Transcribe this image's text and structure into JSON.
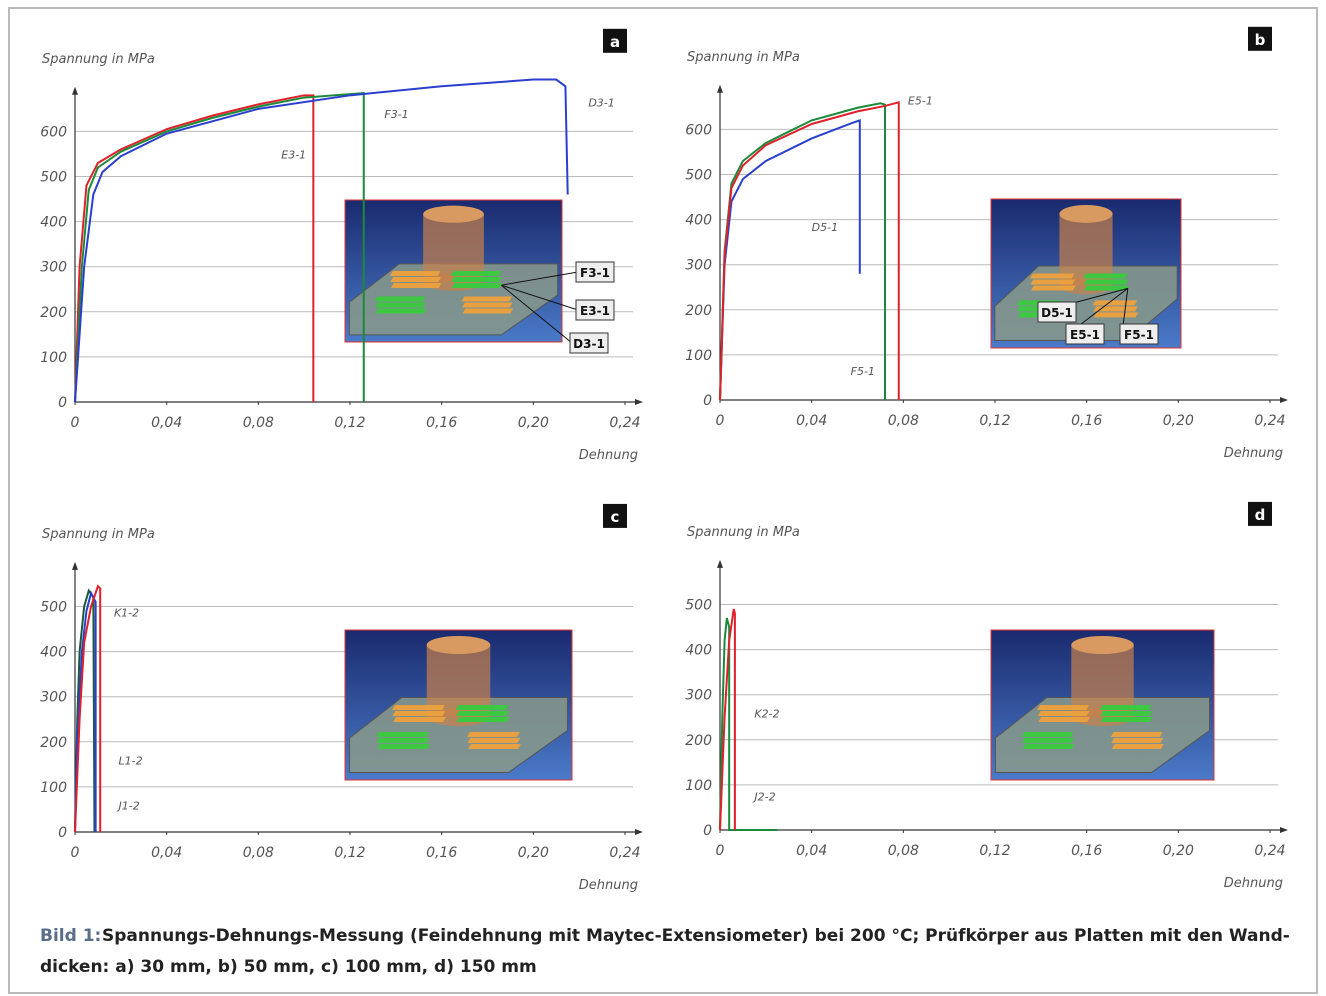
{
  "chart_data": [
    {
      "type": "line",
      "panel": "a",
      "y_label": "Spannung in MPa",
      "x_label": "Dehnung",
      "xlim": [
        0,
        0.24
      ],
      "ylim": [
        0,
        690
      ],
      "grid": true,
      "xticks": [
        0,
        {
          "value": 0.04,
          "label": "0,04"
        },
        {
          "value": 0.08,
          "label": "0,08"
        },
        {
          "value": 0.12,
          "label": "0,12"
        },
        {
          "value": 0.16,
          "label": "0,16"
        },
        {
          "value": 0.2,
          "label": "0,20"
        },
        {
          "value": 0.24,
          "label": "0,24"
        }
      ],
      "yticks": [
        0,
        100,
        200,
        300,
        400,
        500,
        600
      ],
      "series": [
        {
          "name": "E3-1",
          "color": "#e0202a",
          "x": [
            0,
            0.002,
            0.005,
            0.01,
            0.02,
            0.04,
            0.06,
            0.08,
            0.1,
            0.104,
            0.104
          ],
          "values": [
            0,
            300,
            480,
            530,
            560,
            605,
            635,
            660,
            680,
            680,
            0
          ]
        },
        {
          "name": "F3-1",
          "color": "#1a8a3a",
          "x": [
            0,
            0.003,
            0.006,
            0.01,
            0.02,
            0.04,
            0.06,
            0.08,
            0.1,
            0.126,
            0.126
          ],
          "values": [
            0,
            300,
            470,
            520,
            555,
            600,
            630,
            655,
            675,
            685,
            0
          ]
        },
        {
          "name": "D3-1",
          "color": "#2a3fd0",
          "x": [
            0,
            0.004,
            0.008,
            0.012,
            0.02,
            0.04,
            0.08,
            0.12,
            0.16,
            0.2,
            0.21,
            0.214,
            0.215
          ],
          "values": [
            0,
            300,
            460,
            510,
            545,
            595,
            650,
            680,
            700,
            715,
            715,
            700,
            460
          ]
        }
      ]
    },
    {
      "type": "line",
      "panel": "b",
      "y_label": "Spannung in MPa",
      "x_label": "Dehnung",
      "xlim": [
        0,
        0.24
      ],
      "ylim": [
        0,
        690
      ],
      "grid": true,
      "xticks": [
        0,
        {
          "value": 0.04,
          "label": "0,04"
        },
        {
          "value": 0.08,
          "label": "0,08"
        },
        {
          "value": 0.12,
          "label": "0,12"
        },
        {
          "value": 0.16,
          "label": "0,16"
        },
        {
          "value": 0.2,
          "label": "0,20"
        },
        {
          "value": 0.24,
          "label": "0,24"
        }
      ],
      "yticks": [
        0,
        100,
        200,
        300,
        400,
        500,
        600
      ],
      "series": [
        {
          "name": "D5-1",
          "color": "#2a3fd0",
          "x": [
            0,
            0.002,
            0.005,
            0.01,
            0.02,
            0.04,
            0.058,
            0.061,
            0.061
          ],
          "values": [
            0,
            300,
            440,
            490,
            530,
            580,
            615,
            620,
            280
          ]
        },
        {
          "name": "F5-1",
          "color": "#1a8a3a",
          "x": [
            0,
            0.002,
            0.005,
            0.01,
            0.02,
            0.04,
            0.06,
            0.07,
            0.072,
            0.072
          ],
          "values": [
            0,
            330,
            480,
            530,
            570,
            620,
            648,
            658,
            655,
            0
          ]
        },
        {
          "name": "E5-1",
          "color": "#e0202a",
          "x": [
            0,
            0.002,
            0.005,
            0.01,
            0.02,
            0.04,
            0.06,
            0.072,
            0.078,
            0.078
          ],
          "values": [
            0,
            320,
            470,
            520,
            565,
            612,
            640,
            652,
            660,
            0
          ]
        }
      ]
    },
    {
      "type": "line",
      "panel": "c",
      "y_label": "Spannung in MPa",
      "x_label": "Dehnung",
      "xlim": [
        0,
        0.24
      ],
      "ylim": [
        0,
        590
      ],
      "grid": true,
      "xticks": [
        0,
        {
          "value": 0.04,
          "label": "0,04"
        },
        {
          "value": 0.08,
          "label": "0,08"
        },
        {
          "value": 0.12,
          "label": "0,12"
        },
        {
          "value": 0.16,
          "label": "0,16"
        },
        {
          "value": 0.2,
          "label": "0,20"
        },
        {
          "value": 0.24,
          "label": "0,24"
        }
      ],
      "yticks": [
        0,
        100,
        200,
        300,
        400,
        500
      ],
      "series": [
        {
          "name": "K1-2",
          "color": "#1c5a3a",
          "x": [
            0,
            0.001,
            0.002,
            0.004,
            0.006,
            0.008,
            0.0085
          ],
          "values": [
            0,
            250,
            400,
            500,
            535,
            520,
            0
          ]
        },
        {
          "name": "L1-2",
          "color": "#2a3fd0",
          "x": [
            0,
            0.001,
            0.003,
            0.005,
            0.007,
            0.009,
            0.009
          ],
          "values": [
            0,
            200,
            400,
            490,
            530,
            510,
            0
          ]
        },
        {
          "name": "J1-2",
          "color": "#e0202a",
          "x": [
            0,
            0.002,
            0.004,
            0.007,
            0.01,
            0.011,
            0.011
          ],
          "values": [
            0,
            250,
            420,
            500,
            545,
            540,
            0
          ]
        }
      ]
    },
    {
      "type": "line",
      "panel": "d",
      "y_label": "Spannung in MPa",
      "x_label": "Dehnung",
      "xlim": [
        0,
        0.24
      ],
      "ylim": [
        0,
        590
      ],
      "grid": true,
      "xticks": [
        0,
        {
          "value": 0.04,
          "label": "0,04"
        },
        {
          "value": 0.08,
          "label": "0,08"
        },
        {
          "value": 0.12,
          "label": "0,12"
        },
        {
          "value": 0.16,
          "label": "0,16"
        },
        {
          "value": 0.2,
          "label": "0,20"
        },
        {
          "value": 0.24,
          "label": "0,24"
        }
      ],
      "yticks": [
        0,
        100,
        200,
        300,
        400,
        500
      ],
      "series": [
        {
          "name": "K2-2",
          "color": "#1a8a3a",
          "x": [
            0,
            0.001,
            0.002,
            0.003,
            0.004,
            0.004,
            0.025
          ],
          "values": [
            0,
            250,
            420,
            470,
            450,
            0,
            0
          ]
        },
        {
          "name": "J2-2",
          "color": "#e0202a",
          "x": [
            0,
            0.002,
            0.004,
            0.006,
            0.0065,
            0.0065
          ],
          "values": [
            0,
            250,
            420,
            490,
            480,
            0
          ]
        }
      ]
    }
  ],
  "caption": {
    "label": "Bild 1:",
    "lines": [
      "Spannungs-Dehnungs-Messung (Feindehnung mit Maytec-Extensiometer) bei 200 °C; Prüfkörper aus Platten mit den Wand-",
      "dicken: a) 30 mm, b) 50 mm, c) 100 mm, d) 150 mm"
    ]
  }
}
